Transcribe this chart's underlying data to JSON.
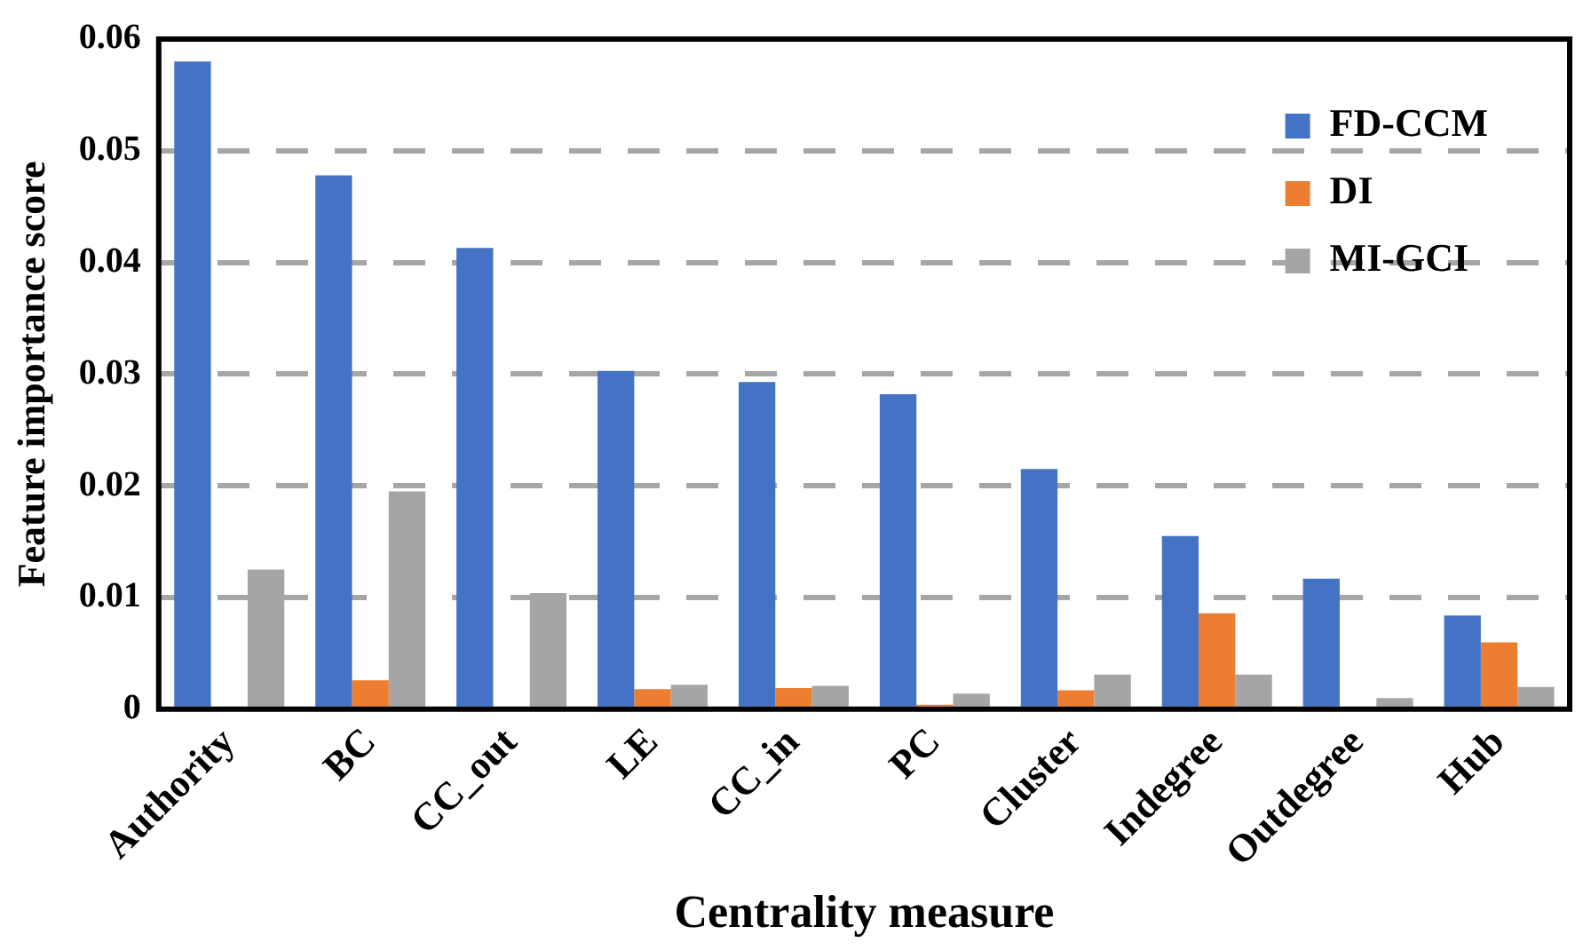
{
  "chart_data": {
    "type": "bar",
    "xlabel": "Centrality measure",
    "ylabel": "Feature importance score",
    "categories": [
      "Authority",
      "BC",
      "CC_out",
      "LE",
      "CC_in",
      "PC",
      "Cluster",
      "Indegree",
      "Outdegree",
      "Hub"
    ],
    "series": [
      {
        "name": "FD-CCM",
        "color": "#4472c4",
        "values": [
          0.058,
          0.0478,
          0.0413,
          0.0303,
          0.0293,
          0.0282,
          0.0215,
          0.0155,
          0.0117,
          0.0084
        ]
      },
      {
        "name": "DI",
        "color": "#ed7d31",
        "values": [
          0,
          0.0026,
          0,
          0.0018,
          0.0019,
          0.0004,
          0.0017,
          0.0086,
          0,
          0.006
        ]
      },
      {
        "name": "MI-GCI",
        "color": "#a5a5a5",
        "values": [
          0.0125,
          0.0195,
          0.0104,
          0.0022,
          0.0021,
          0.0014,
          0.0031,
          0.0031,
          0.001,
          0.002
        ]
      }
    ],
    "ylim": [
      0,
      0.06
    ],
    "yticks": [
      0,
      0.01,
      0.02,
      0.03,
      0.04,
      0.05,
      0.06
    ],
    "grid": "y",
    "legend": "top right"
  }
}
